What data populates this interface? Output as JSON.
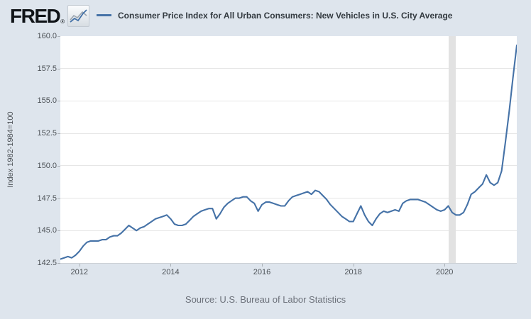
{
  "header": {
    "logo_text": "FRED",
    "registered_mark": "®",
    "legend_label": "Consumer Price Index for All Urban Consumers: New Vehicles in U.S. City Average"
  },
  "footer": {
    "source": "Source: U.S. Bureau of Labor Statistics"
  },
  "colors": {
    "background": "#dee5ed",
    "line": "#4572a7",
    "recession_band": "#e2e2e2",
    "gridline": "#e6e6e6",
    "plot_background": "#ffffff"
  },
  "chart_data": {
    "type": "line",
    "title": "Consumer Price Index for All Urban Consumers: New Vehicles in U.S. City Average",
    "xlabel": "",
    "ylabel": "Index 1982-1984=100",
    "ylim": [
      142.5,
      160.0
    ],
    "y_ticks": [
      142.5,
      145.0,
      147.5,
      150.0,
      152.5,
      155.0,
      157.5,
      160.0
    ],
    "x_ticks": [
      2012,
      2014,
      2016,
      2018,
      2020
    ],
    "grid": "horizontal",
    "legend_position": "top",
    "frequency": "monthly",
    "recession_shading": {
      "start": "2020-02",
      "end": "2020-04"
    },
    "series_name": "Consumer Price Index for All Urban Consumers: New Vehicles in U.S. City Average",
    "dates": [
      "2011-08",
      "2011-09",
      "2011-10",
      "2011-11",
      "2011-12",
      "2012-01",
      "2012-02",
      "2012-03",
      "2012-04",
      "2012-05",
      "2012-06",
      "2012-07",
      "2012-08",
      "2012-09",
      "2012-10",
      "2012-11",
      "2012-12",
      "2013-01",
      "2013-02",
      "2013-03",
      "2013-04",
      "2013-05",
      "2013-06",
      "2013-07",
      "2013-08",
      "2013-09",
      "2013-10",
      "2013-11",
      "2013-12",
      "2014-01",
      "2014-02",
      "2014-03",
      "2014-04",
      "2014-05",
      "2014-06",
      "2014-07",
      "2014-08",
      "2014-09",
      "2014-10",
      "2014-11",
      "2014-12",
      "2015-01",
      "2015-02",
      "2015-03",
      "2015-04",
      "2015-05",
      "2015-06",
      "2015-07",
      "2015-08",
      "2015-09",
      "2015-10",
      "2015-11",
      "2015-12",
      "2016-01",
      "2016-02",
      "2016-03",
      "2016-04",
      "2016-05",
      "2016-06",
      "2016-07",
      "2016-08",
      "2016-09",
      "2016-10",
      "2016-11",
      "2016-12",
      "2017-01",
      "2017-02",
      "2017-03",
      "2017-04",
      "2017-05",
      "2017-06",
      "2017-07",
      "2017-08",
      "2017-09",
      "2017-10",
      "2017-11",
      "2017-12",
      "2018-01",
      "2018-02",
      "2018-03",
      "2018-04",
      "2018-05",
      "2018-06",
      "2018-07",
      "2018-08",
      "2018-09",
      "2018-10",
      "2018-11",
      "2018-12",
      "2019-01",
      "2019-02",
      "2019-03",
      "2019-04",
      "2019-05",
      "2019-06",
      "2019-07",
      "2019-08",
      "2019-09",
      "2019-10",
      "2019-11",
      "2019-12",
      "2020-01",
      "2020-02",
      "2020-03",
      "2020-04",
      "2020-05",
      "2020-06",
      "2020-07",
      "2020-08",
      "2020-09",
      "2020-10",
      "2020-11",
      "2020-12",
      "2021-01",
      "2021-02",
      "2021-03",
      "2021-04",
      "2021-05",
      "2021-06",
      "2021-07",
      "2021-08"
    ],
    "values": [
      142.8,
      142.9,
      143.0,
      142.9,
      143.1,
      143.4,
      143.8,
      144.1,
      144.2,
      144.2,
      144.2,
      144.3,
      144.3,
      144.5,
      144.6,
      144.6,
      144.8,
      145.1,
      145.4,
      145.2,
      145.0,
      145.2,
      145.3,
      145.5,
      145.7,
      145.9,
      146.0,
      146.1,
      146.2,
      145.9,
      145.5,
      145.4,
      145.4,
      145.5,
      145.8,
      146.1,
      146.3,
      146.5,
      146.6,
      146.7,
      146.7,
      145.9,
      146.3,
      146.8,
      147.1,
      147.3,
      147.5,
      147.5,
      147.6,
      147.6,
      147.3,
      147.1,
      146.5,
      147.0,
      147.2,
      147.2,
      147.1,
      147.0,
      146.9,
      146.9,
      147.3,
      147.6,
      147.7,
      147.8,
      147.9,
      148.0,
      147.8,
      148.1,
      148.0,
      147.7,
      147.4,
      147.0,
      146.7,
      146.4,
      146.1,
      145.9,
      145.7,
      145.7,
      146.3,
      146.9,
      146.2,
      145.7,
      145.4,
      145.9,
      146.3,
      146.5,
      146.4,
      146.5,
      146.6,
      146.5,
      147.1,
      147.3,
      147.4,
      147.4,
      147.4,
      147.3,
      147.2,
      147.0,
      146.8,
      146.6,
      146.5,
      146.6,
      146.9,
      146.4,
      146.2,
      146.2,
      146.4,
      147.0,
      147.8,
      148.0,
      148.3,
      148.6,
      149.3,
      148.7,
      148.5,
      148.7,
      149.6,
      151.8,
      154.2,
      156.8,
      159.3
    ]
  }
}
